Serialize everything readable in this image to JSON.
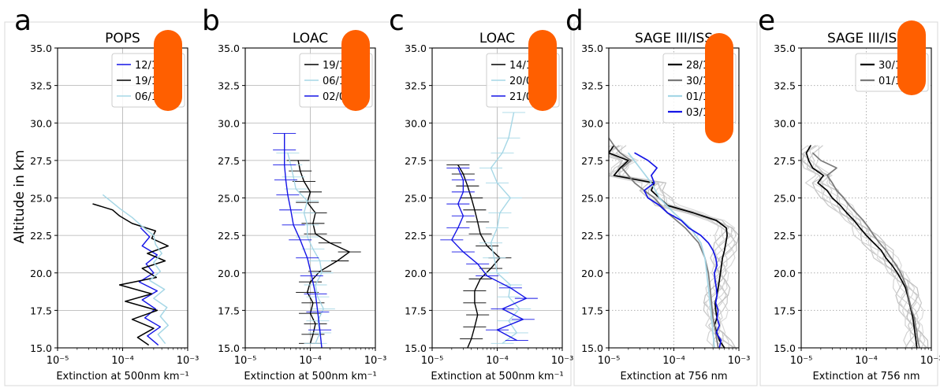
{
  "figure": {
    "shared_ylabel": "Altitude in km",
    "colors": {
      "blue": "#1515e6",
      "black": "#000000",
      "lightblue": "#a6d7e6",
      "grey": "#7a7a7a",
      "lightgrey": "#cfcfcf",
      "orange": "#ff5f00"
    }
  },
  "chart_data": [
    {
      "type": "line",
      "panel_letter": "a",
      "title": "POPS",
      "xlabel": "Extinction at 500nm km⁻¹",
      "xscale": "log",
      "xlim": [
        1e-05,
        0.001
      ],
      "ylim": [
        15.0,
        35.0
      ],
      "xticks": [
        "10⁻⁵",
        "10⁻⁴",
        "10⁻³"
      ],
      "yticks": [
        "15.0",
        "17.5",
        "20.0",
        "22.5",
        "25.0",
        "27.5",
        "30.0",
        "32.5",
        "35.0"
      ],
      "grid": true,
      "grid_style": "solid",
      "legend_position": "top-right",
      "orange_marker": true,
      "series": [
        {
          "name": "12/10/22",
          "color": "blue",
          "width": 1.4,
          "y": [
            15.2,
            15.8,
            16.4,
            17.0,
            17.6,
            18.2,
            18.8,
            19.4,
            20.0,
            20.6,
            21.2,
            21.8,
            22.4,
            23.0
          ],
          "x": [
            0.00035,
            0.00024,
            0.00038,
            0.00022,
            0.00032,
            0.0002,
            0.00034,
            0.00018,
            0.0003,
            0.00023,
            0.00034,
            0.0002,
            0.00026,
            0.00019
          ]
        },
        {
          "name": "19/10/22",
          "color": "black",
          "width": 1.5,
          "y": [
            15.2,
            15.7,
            16.3,
            16.9,
            17.5,
            18.1,
            18.6,
            19.2,
            19.7,
            20.3,
            20.8,
            21.3,
            21.8,
            22.3,
            22.8,
            23.3,
            23.8,
            24.2,
            24.6
          ],
          "x": [
            0.00025,
            0.00017,
            0.0003,
            0.00014,
            0.00034,
            0.00011,
            0.00028,
            9e-05,
            0.00033,
            0.0002,
            0.00045,
            0.00024,
            0.0005,
            0.00028,
            0.00032,
            0.00014,
            9e-05,
            7e-05,
            3.5e-05
          ]
        },
        {
          "name": "06/12/22",
          "color": "lightblue",
          "width": 1.5,
          "y": [
            15.3,
            15.9,
            16.5,
            17.1,
            17.7,
            18.3,
            18.9,
            19.5,
            20.1,
            20.7,
            21.3,
            21.9,
            22.5,
            23.1,
            23.7,
            24.3,
            24.8,
            25.2
          ],
          "x": [
            0.00045,
            0.00035,
            0.0005,
            0.00038,
            0.00048,
            0.0003,
            0.00044,
            0.00026,
            0.00038,
            0.0003,
            0.0004,
            0.00032,
            0.0003,
            0.0002,
            0.00014,
            9e-05,
            6.5e-05,
            5e-05
          ]
        }
      ]
    },
    {
      "type": "line",
      "panel_letter": "b",
      "title": "LOAC",
      "xlabel": "Extinction at 500nm km⁻¹",
      "xscale": "log",
      "xlim": [
        1e-05,
        0.001
      ],
      "ylim": [
        15.0,
        35.0
      ],
      "xticks": [
        "10⁻⁵",
        "10⁻⁴",
        "10⁻³"
      ],
      "yticks": [
        "15.0",
        "17.5",
        "20.0",
        "22.5",
        "25.0",
        "27.5",
        "30.0",
        "32.5",
        "35.0"
      ],
      "grid": true,
      "grid_style": "solid",
      "legend_position": "top-right",
      "orange_marker": true,
      "error_bars": true,
      "series": [
        {
          "name": "19/10/22",
          "color": "black",
          "width": 1.4,
          "y": [
            15.3,
            15.9,
            16.6,
            17.3,
            18.0,
            18.7,
            19.4,
            20.1,
            20.8,
            21.4,
            22.0,
            22.6,
            23.3,
            24.0,
            24.7,
            25.4,
            26.1,
            26.8,
            27.5
          ],
          "x": [
            0.0001,
            0.00011,
            0.00012,
            0.0001,
            0.00011,
            9e-05,
            0.0001,
            0.00014,
            0.00026,
            0.0004,
            0.0002,
            0.00012,
            0.00011,
            0.00012,
            9e-05,
            0.0001,
            8e-05,
            7e-05,
            6.5e-05
          ]
        },
        {
          "name": "06/12/22",
          "color": "lightblue",
          "width": 1.4,
          "y": [
            15.3,
            16.0,
            16.8,
            17.6,
            18.4,
            19.2,
            20.0,
            20.8,
            21.6,
            22.4,
            23.2,
            24.0,
            24.8,
            25.6,
            26.4,
            27.2,
            28.0
          ],
          "x": [
            0.00012,
            0.00014,
            0.00013,
            0.00016,
            0.00013,
            0.00012,
            0.00015,
            0.00014,
            0.00011,
            9e-05,
            9e-05,
            8e-05,
            9e-05,
            6e-05,
            5.5e-05,
            5e-05,
            4.5e-05
          ]
        },
        {
          "name": "02/06/23",
          "color": "blue",
          "width": 1.4,
          "y": [
            15.0,
            16.2,
            17.4,
            18.6,
            19.8,
            21.0,
            22.2,
            23.2,
            24.2,
            25.2,
            26.2,
            27.2,
            28.2,
            29.3
          ],
          "x": [
            0.00015,
            0.00014,
            0.00013,
            0.00012,
            0.000105,
            9e-05,
            7e-05,
            5.5e-05,
            5e-05,
            4.5e-05,
            4.2e-05,
            4e-05,
            4e-05,
            4e-05
          ]
        }
      ]
    },
    {
      "type": "line",
      "panel_letter": "c",
      "title": "LOAC",
      "xlabel": "Extinction at 500nm km⁻¹",
      "xscale": "log",
      "xlim": [
        1e-05,
        0.001
      ],
      "ylim": [
        15.0,
        35.0
      ],
      "xticks": [
        "10⁻⁵",
        "10⁻⁴",
        "10⁻³"
      ],
      "yticks": [
        "15.0",
        "17.5",
        "20.0",
        "22.5",
        "25.0",
        "27.5",
        "30.0",
        "32.5",
        "35.0"
      ],
      "grid": true,
      "grid_style": "solid",
      "legend_position": "top-right",
      "orange_marker": true,
      "error_bars": true,
      "series": [
        {
          "name": "14/11/22",
          "color": "black",
          "width": 1.4,
          "y": [
            15.0,
            15.6,
            16.4,
            17.2,
            18.0,
            18.8,
            19.6,
            20.3,
            21.0,
            21.8,
            22.6,
            23.4,
            24.2,
            25.0,
            25.8,
            26.6,
            27.2
          ],
          "x": [
            3.5e-05,
            4e-05,
            4.5e-05,
            5e-05,
            4.5e-05,
            4.5e-05,
            5.5e-05,
            8e-05,
            0.00011,
            7e-05,
            5.5e-05,
            5e-05,
            4.5e-05,
            4e-05,
            3.5e-05,
            3e-05,
            2.5e-05
          ]
        },
        {
          "name": "20/01/23",
          "color": "lightblue",
          "width": 1.4,
          "y": [
            15.3,
            16.0,
            16.8,
            17.6,
            18.4,
            19.2,
            20.0,
            21.0,
            22.0,
            23.0,
            24.0,
            25.0,
            26.0,
            27.0,
            28.0,
            29.0,
            30.7
          ],
          "x": [
            0.00012,
            0.0002,
            0.00015,
            0.00022,
            0.00015,
            0.00016,
            0.0001,
            9e-05,
            8e-05,
            0.0001,
            0.00011,
            0.00016,
            0.0001,
            8e-05,
            0.00012,
            0.00015,
            0.00018
          ]
        },
        {
          "name": "21/02/23",
          "color": "blue",
          "width": 1.4,
          "y": [
            15.5,
            16.2,
            16.9,
            17.6,
            18.3,
            19.0,
            19.8,
            20.6,
            21.4,
            22.2,
            23.0,
            23.8,
            24.6,
            25.4,
            26.2,
            27.0
          ],
          "x": [
            0.0002,
            0.0001,
            0.00025,
            0.00012,
            0.00028,
            0.00016,
            7e-05,
            5e-05,
            3e-05,
            2e-05,
            2.5e-05,
            3e-05,
            2.5e-05,
            3e-05,
            3e-05,
            2.5e-05
          ]
        }
      ]
    },
    {
      "type": "line",
      "panel_letter": "d",
      "title": "SAGE III/ISS",
      "xlabel": "Extinction at 756 nm",
      "xscale": "log",
      "xlim": [
        1e-05,
        0.001
      ],
      "ylim": [
        15.0,
        35.0
      ],
      "xticks": [
        "10⁻⁵",
        "10⁻⁴",
        "10⁻³"
      ],
      "yticks": [
        "15.0",
        "17.5",
        "20.0",
        "22.5",
        "25.0",
        "27.5",
        "30.0",
        "32.5",
        "35.0"
      ],
      "grid": true,
      "grid_style": "dotted",
      "legend_position": "top-right",
      "orange_marker": true,
      "series": [
        {
          "name": "28/10/22",
          "color": "black",
          "width": 1.7,
          "y": [
            15.0,
            15.5,
            16.0,
            16.5,
            17.0,
            17.5,
            18.0,
            18.5,
            19.0,
            19.5,
            20.0,
            20.5,
            21.0,
            21.5,
            22.0,
            22.5,
            23.0,
            23.5,
            24.0,
            24.5,
            25.0,
            25.5,
            26.0,
            26.5,
            27.0,
            27.5,
            28.0,
            28.5
          ],
          "x": [
            0.0006,
            0.0005,
            0.00046,
            0.00042,
            0.00046,
            0.00044,
            0.00043,
            0.00046,
            0.00048,
            0.0005,
            0.00052,
            0.00054,
            0.00056,
            0.0006,
            0.00063,
            0.00066,
            0.00064,
            0.00045,
            0.0002,
            8e-05,
            6e-05,
            4.5e-05,
            5e-05,
            1.2e-05,
            1.5e-05,
            2e-05,
            1e-05,
            1.2e-05
          ]
        },
        {
          "name": "30/10/22",
          "color": "grey",
          "width": 1.7,
          "y": [
            15.0,
            16.0,
            17.0,
            18.0,
            19.0,
            20.0,
            21.0,
            22.0,
            23.0,
            24.0,
            25.0,
            25.5,
            26.0,
            26.5,
            27.0,
            27.5,
            28.0,
            28.5,
            29.0
          ],
          "x": [
            0.00048,
            0.00044,
            0.0004,
            0.00038,
            0.00036,
            0.00034,
            0.0003,
            0.00024,
            0.00015,
            8e-05,
            5e-05,
            3.5e-05,
            2.5e-05,
            2e-05,
            1.6e-05,
            2.2e-05,
            1.5e-05,
            1.2e-05,
            1e-05
          ]
        },
        {
          "name": "01/11/22",
          "color": "lightblue",
          "width": 1.7,
          "y": [
            15.0,
            16.0,
            17.0,
            18.0,
            19.0,
            20.0,
            21.0,
            22.0,
            23.0,
            24.0,
            25.0,
            26.0,
            27.0,
            28.0
          ],
          "x": [
            0.00042,
            0.0004,
            0.00038,
            0.00036,
            0.00034,
            0.00032,
            0.0003,
            0.00026,
            0.00018,
            0.0001,
            6e-05,
            4.5e-05,
            3e-05,
            2e-05
          ]
        },
        {
          "name": "03/11/22",
          "color": "blue",
          "width": 1.7,
          "y": [
            15.0,
            15.5,
            16.0,
            16.5,
            17.0,
            17.5,
            18.0,
            18.5,
            19.0,
            19.5,
            20.0,
            20.5,
            21.0,
            21.5,
            22.0,
            22.5,
            23.0,
            23.5,
            24.0,
            24.5,
            25.0,
            25.5,
            26.0,
            26.5,
            27.0,
            27.5,
            28.0
          ],
          "x": [
            0.0005,
            0.00053,
            0.00045,
            0.0005,
            0.00046,
            0.00048,
            0.00044,
            0.00046,
            0.00045,
            0.00043,
            0.00042,
            0.00046,
            0.00044,
            0.0004,
            0.00034,
            0.00026,
            0.00017,
            0.00013,
            8e-05,
            6e-05,
            4e-05,
            3.5e-05,
            5e-05,
            4.5e-05,
            5.5e-05,
            4e-05,
            2.5e-05
          ]
        }
      ]
    },
    {
      "type": "line",
      "panel_letter": "e",
      "title": "SAGE III/ISS",
      "xlabel": "Extinction at 756 nm",
      "xscale": "log",
      "xlim": [
        1e-05,
        0.001
      ],
      "ylim": [
        15.0,
        35.0
      ],
      "xticks": [
        "10⁻⁵",
        "10⁻⁴",
        "10⁻³"
      ],
      "yticks": [
        "15.0",
        "17.5",
        "20.0",
        "22.5",
        "25.0",
        "27.5",
        "30.0",
        "32.5",
        "35.0"
      ],
      "grid": true,
      "grid_style": "dotted",
      "legend_position": "top-right",
      "orange_marker": true,
      "series": [
        {
          "name": "30/10/23",
          "color": "black",
          "width": 1.7,
          "y": [
            15.0,
            15.5,
            16.0,
            16.5,
            17.0,
            17.5,
            18.0,
            18.5,
            19.0,
            19.5,
            20.0,
            20.5,
            21.0,
            21.5,
            22.0,
            22.5,
            23.0,
            23.5,
            24.0,
            24.5,
            25.0,
            25.5,
            26.0,
            26.5,
            27.0,
            27.5,
            28.0,
            28.5
          ],
          "x": [
            0.0006,
            0.00058,
            0.00056,
            0.00054,
            0.00052,
            0.00049,
            0.00046,
            0.00043,
            0.0004,
            0.00035,
            0.0003,
            0.00025,
            0.0002,
            0.00017,
            0.00013,
            0.0001,
            8e-05,
            6.5e-05,
            5e-05,
            4e-05,
            3e-05,
            2.5e-05,
            1.8e-05,
            2.2e-05,
            1.5e-05,
            1.3e-05,
            1.2e-05,
            1.4e-05
          ]
        },
        {
          "name": "01/11/23",
          "color": "grey",
          "width": 1.7,
          "y": [
            15.0,
            15.5,
            16.0,
            16.5,
            17.0,
            17.5,
            18.0,
            18.5,
            19.0,
            19.5,
            20.0,
            20.5,
            21.0,
            21.5,
            22.0,
            22.5,
            23.0,
            23.5,
            24.0,
            24.5,
            25.0,
            25.5,
            26.0,
            26.5,
            27.0,
            27.5,
            28.0
          ],
          "x": [
            0.00066,
            0.00062,
            0.0006,
            0.00057,
            0.00055,
            0.0005,
            0.00047,
            0.00044,
            0.00042,
            0.00038,
            0.00034,
            0.00029,
            0.00024,
            0.0002,
            0.00016,
            0.00013,
            0.00011,
            9e-05,
            7e-05,
            5.5e-05,
            4.5e-05,
            3.5e-05,
            3e-05,
            2.5e-05,
            3.5e-05,
            2e-05,
            1.5e-05
          ]
        }
      ]
    }
  ]
}
